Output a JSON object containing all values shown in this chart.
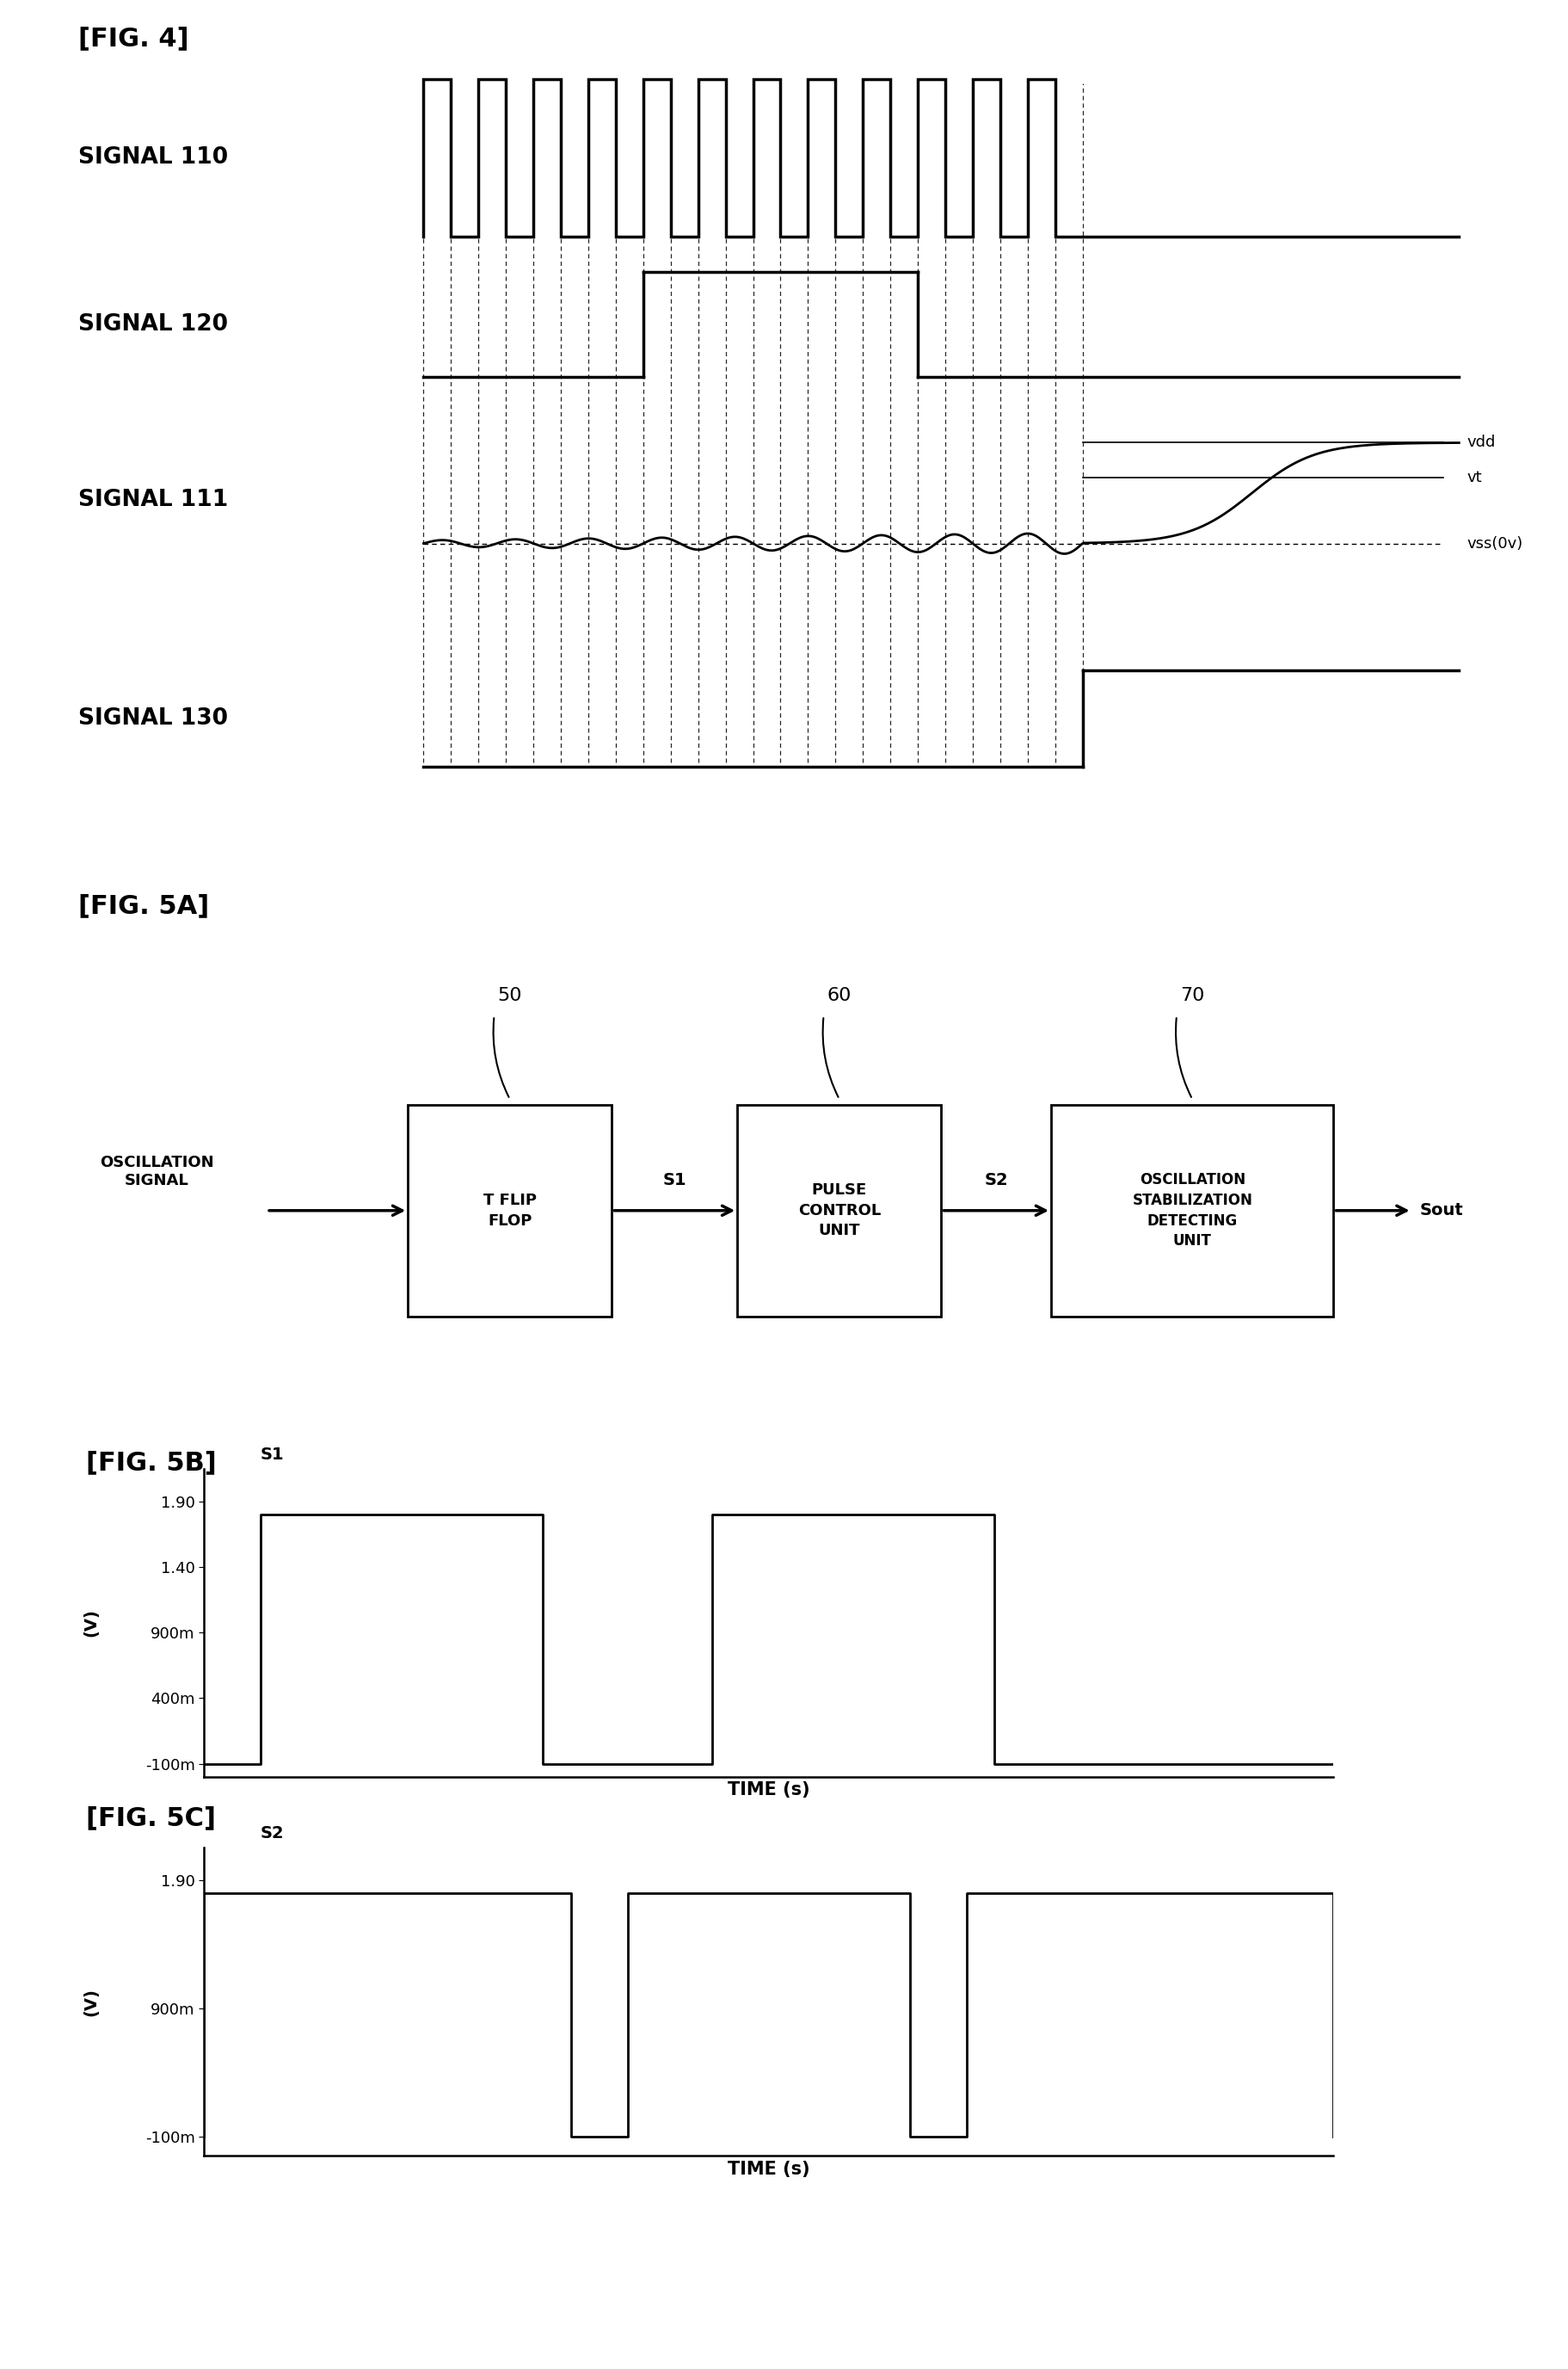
{
  "fig4_title": "[FIG. 4]",
  "fig5a_title": "[FIG. 5A]",
  "fig5b_title": "[FIG. 5B]",
  "fig5c_title": "[FIG. 5C]",
  "background_color": "#ffffff",
  "signal_labels": [
    "SIGNAL 110",
    "SIGNAL 120",
    "SIGNAL 111",
    "SIGNAL 130"
  ],
  "vdd_label": "vdd",
  "vt_label": "vt",
  "vss_label": "vss(0v)",
  "fig5a_input": "OSCILLATION\nSIGNAL",
  "fig5a_block1": "T FLIP\nFLOP",
  "fig5a_block2": "PULSE\nCONTROL\nUNIT",
  "fig5a_block3": "OSCILLATION\nSTABILIZATION\nDETECTING\nUNIT",
  "fig5a_ids": [
    "50",
    "60",
    "70"
  ],
  "fig5a_connectors": [
    "S1",
    "S2",
    "Sout"
  ],
  "fig5b_title_label": "S1",
  "fig5b_yticks": [
    "1.90",
    "1.40",
    "900m",
    "400m",
    "-100m"
  ],
  "fig5b_ytick_vals": [
    1.9,
    1.4,
    0.9,
    0.4,
    -0.1
  ],
  "fig5b_xlabel": "TIME (s)",
  "fig5b_vlabel": "(V)",
  "fig5c_title_label": "S2",
  "fig5c_yticks": [
    "1.90",
    "900m",
    "-100m"
  ],
  "fig5c_ytick_vals": [
    1.9,
    0.9,
    -0.1
  ],
  "fig5c_xlabel": "TIME (s)",
  "fig5c_vlabel": "(V)"
}
